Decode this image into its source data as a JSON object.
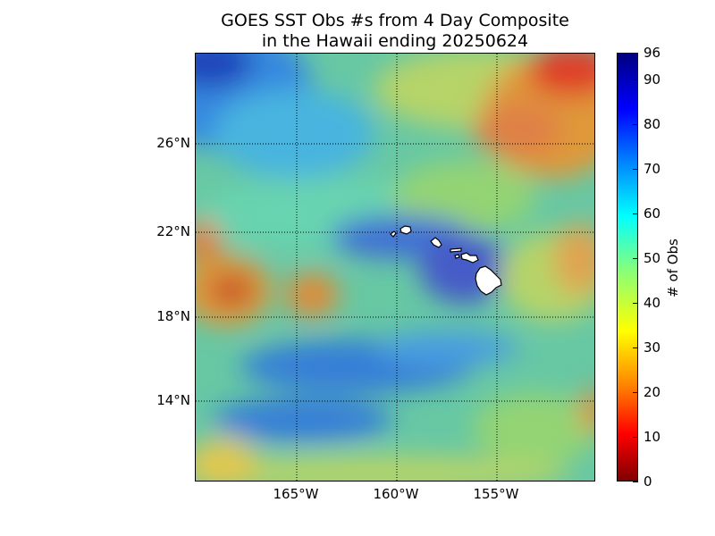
{
  "title": {
    "line1": "GOES SST Obs #s from 4 Day Composite",
    "line2": "in the Hawaii ending 20250624"
  },
  "map": {
    "lat_labels": [
      "26°N",
      "22°N",
      "18°N",
      "14°N"
    ],
    "lon_labels": [
      "165°W",
      "160°W",
      "155°W"
    ],
    "land_color": "#ffffff",
    "gridline_style": "dotted black"
  },
  "colorbar": {
    "title": "# of Obs",
    "tick_labels": [
      "0",
      "10",
      "20",
      "30",
      "40",
      "50",
      "60",
      "70",
      "80",
      "90",
      "96"
    ],
    "min": 0,
    "max": 96,
    "colormap": "jet"
  }
}
